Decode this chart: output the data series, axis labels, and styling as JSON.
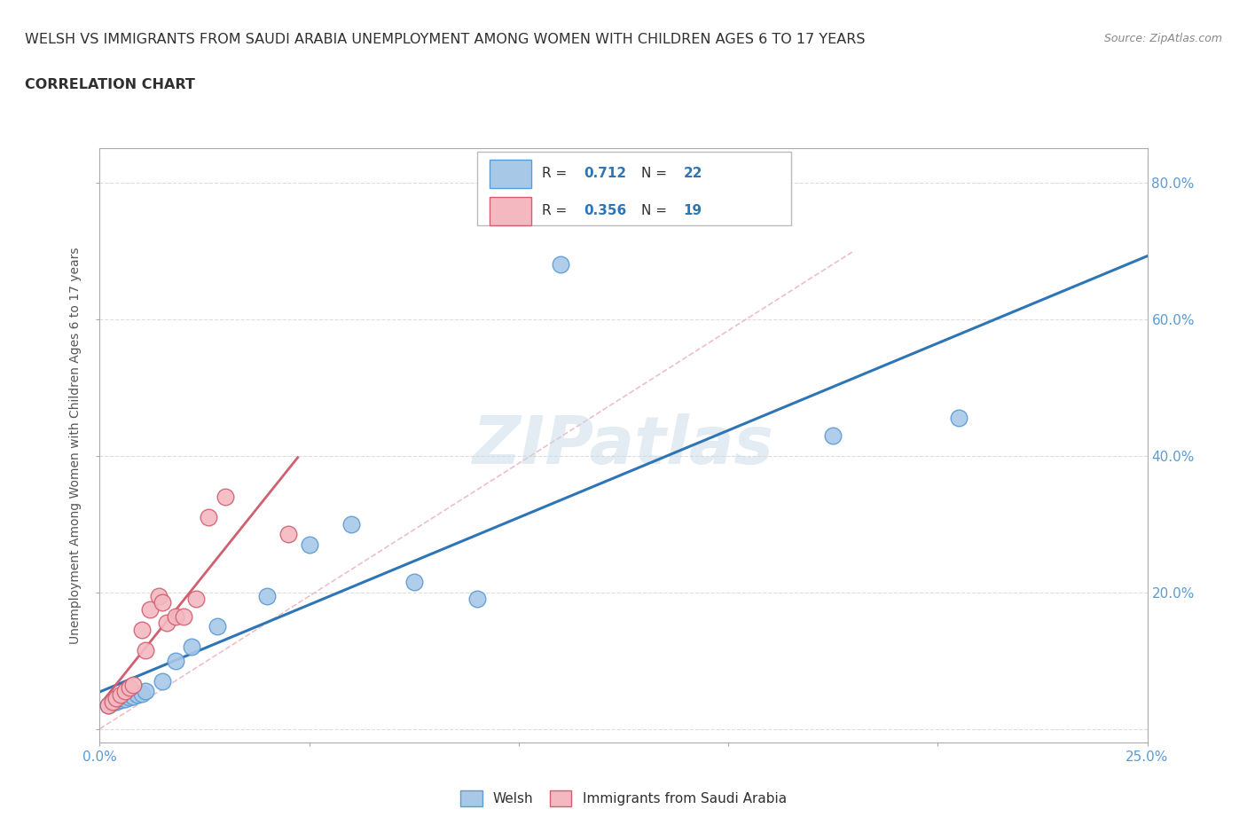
{
  "title_line1": "WELSH VS IMMIGRANTS FROM SAUDI ARABIA UNEMPLOYMENT AMONG WOMEN WITH CHILDREN AGES 6 TO 17 YEARS",
  "title_line2": "CORRELATION CHART",
  "source": "Source: ZipAtlas.com",
  "ylabel": "Unemployment Among Women with Children Ages 6 to 17 years",
  "xlim": [
    0.0,
    0.25
  ],
  "ylim": [
    -0.02,
    0.85
  ],
  "x_ticks": [
    0.0,
    0.25
  ],
  "x_tick_labels": [
    "0.0%",
    "25.0%"
  ],
  "y_ticks": [
    0.0,
    0.2,
    0.4,
    0.6,
    0.8
  ],
  "y_tick_labels_right": [
    "",
    "20.0%",
    "40.0%",
    "60.0%",
    "80.0%"
  ],
  "welsh_color": "#A8C8E8",
  "welsh_edge_color": "#5B9BD5",
  "saudi_color": "#F4B8C1",
  "saudi_edge_color": "#D06070",
  "trend_welsh_color": "#2E75B6",
  "trend_saudi_color": "#D06070",
  "diag_line_color": "#E8B0BB",
  "watermark": "ZIPatlas",
  "legend_welsh_R": "0.712",
  "legend_welsh_N": "22",
  "legend_saudi_R": "0.356",
  "legend_saudi_N": "19",
  "welsh_x": [
    0.002,
    0.003,
    0.004,
    0.005,
    0.006,
    0.007,
    0.008,
    0.009,
    0.01,
    0.011,
    0.015,
    0.018,
    0.022,
    0.028,
    0.04,
    0.05,
    0.06,
    0.075,
    0.09,
    0.11,
    0.175,
    0.205
  ],
  "welsh_y": [
    0.035,
    0.038,
    0.04,
    0.042,
    0.044,
    0.046,
    0.048,
    0.05,
    0.052,
    0.055,
    0.07,
    0.1,
    0.12,
    0.15,
    0.195,
    0.27,
    0.3,
    0.215,
    0.19,
    0.68,
    0.43,
    0.455
  ],
  "saudi_x": [
    0.002,
    0.003,
    0.004,
    0.005,
    0.006,
    0.007,
    0.008,
    0.01,
    0.011,
    0.012,
    0.014,
    0.015,
    0.016,
    0.018,
    0.02,
    0.023,
    0.026,
    0.03,
    0.045
  ],
  "saudi_y": [
    0.035,
    0.04,
    0.045,
    0.05,
    0.055,
    0.06,
    0.065,
    0.145,
    0.115,
    0.175,
    0.195,
    0.185,
    0.155,
    0.165,
    0.165,
    0.19,
    0.31,
    0.34,
    0.285
  ],
  "marker_size": 180,
  "grid_color": "#DDDDDD",
  "bg_color": "#FFFFFF",
  "title_color": "#303030",
  "tick_color": "#5B9BD5"
}
